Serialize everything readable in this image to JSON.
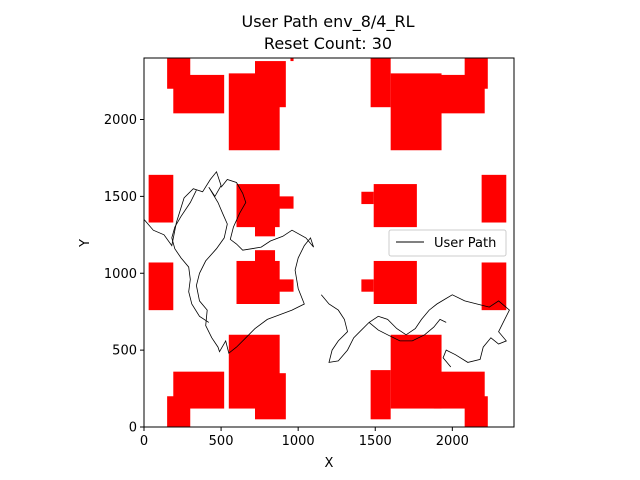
{
  "chart_data": {
    "type": "line",
    "title": "User Path env_8/4_RL",
    "subtitle": "Reset Count: 30",
    "xlabel": "X",
    "ylabel": "Y",
    "xlim": [
      0,
      2400
    ],
    "ylim": [
      0,
      2400
    ],
    "xticks": [
      0,
      500,
      1000,
      1500,
      2000
    ],
    "yticks": [
      0,
      500,
      1000,
      1500,
      2000
    ],
    "obstacle_color": "#ff0000",
    "path_color": "#000000",
    "legend": {
      "label": "User Path",
      "placement": "right"
    },
    "obstacles": [
      {
        "x": 150,
        "y": 2200,
        "w": 150,
        "h": 200
      },
      {
        "x": 190,
        "y": 2040,
        "w": 330,
        "h": 250
      },
      {
        "x": 550,
        "y": 1800,
        "w": 330,
        "h": 500
      },
      {
        "x": 720,
        "y": 2080,
        "w": 200,
        "h": 300
      },
      {
        "x": 950,
        "y": 2380,
        "w": 20,
        "h": 20
      },
      {
        "x": 1470,
        "y": 2080,
        "w": 130,
        "h": 320
      },
      {
        "x": 1600,
        "y": 1800,
        "w": 330,
        "h": 500
      },
      {
        "x": 1880,
        "y": 2040,
        "w": 330,
        "h": 250
      },
      {
        "x": 2080,
        "y": 2200,
        "w": 150,
        "h": 200
      },
      {
        "x": 30,
        "y": 1330,
        "w": 160,
        "h": 310
      },
      {
        "x": 600,
        "y": 1300,
        "w": 280,
        "h": 280
      },
      {
        "x": 820,
        "y": 1420,
        "w": 150,
        "h": 80
      },
      {
        "x": 720,
        "y": 1240,
        "w": 130,
        "h": 90
      },
      {
        "x": 1410,
        "y": 1450,
        "w": 80,
        "h": 80
      },
      {
        "x": 1490,
        "y": 1300,
        "w": 280,
        "h": 280
      },
      {
        "x": 2190,
        "y": 1330,
        "w": 160,
        "h": 310
      },
      {
        "x": 30,
        "y": 760,
        "w": 160,
        "h": 310
      },
      {
        "x": 600,
        "y": 800,
        "w": 280,
        "h": 280
      },
      {
        "x": 820,
        "y": 880,
        "w": 150,
        "h": 80
      },
      {
        "x": 720,
        "y": 1060,
        "w": 130,
        "h": 90
      },
      {
        "x": 1410,
        "y": 880,
        "w": 80,
        "h": 80
      },
      {
        "x": 1490,
        "y": 800,
        "w": 280,
        "h": 280
      },
      {
        "x": 2190,
        "y": 760,
        "w": 160,
        "h": 310
      },
      {
        "x": 150,
        "y": 0,
        "w": 150,
        "h": 200
      },
      {
        "x": 190,
        "y": 120,
        "w": 330,
        "h": 240
      },
      {
        "x": 550,
        "y": 120,
        "w": 330,
        "h": 480
      },
      {
        "x": 720,
        "y": 50,
        "w": 200,
        "h": 300
      },
      {
        "x": 1470,
        "y": 50,
        "w": 130,
        "h": 320
      },
      {
        "x": 1600,
        "y": 120,
        "w": 330,
        "h": 480
      },
      {
        "x": 1880,
        "y": 120,
        "w": 330,
        "h": 240
      },
      {
        "x": 2080,
        "y": 0,
        "w": 150,
        "h": 200
      }
    ],
    "path": [
      [
        0,
        1350
      ],
      [
        60,
        1280
      ],
      [
        130,
        1250
      ],
      [
        180,
        1180
      ],
      [
        210,
        1330
      ],
      [
        260,
        1490
      ],
      [
        320,
        1550
      ],
      [
        380,
        1530
      ],
      [
        430,
        1610
      ],
      [
        470,
        1660
      ],
      [
        500,
        1570
      ],
      [
        460,
        1500
      ],
      [
        420,
        1560
      ],
      [
        480,
        1460
      ],
      [
        510,
        1390
      ],
      [
        540,
        1320
      ],
      [
        520,
        1230
      ],
      [
        470,
        1160
      ],
      [
        400,
        1080
      ],
      [
        360,
        1000
      ],
      [
        340,
        920
      ],
      [
        360,
        820
      ],
      [
        410,
        760
      ],
      [
        400,
        660
      ],
      [
        440,
        580
      ],
      [
        480,
        520
      ],
      [
        490,
        490
      ],
      [
        530,
        560
      ],
      [
        550,
        480
      ],
      [
        600,
        520
      ],
      [
        660,
        580
      ],
      [
        720,
        640
      ],
      [
        800,
        700
      ],
      [
        880,
        730
      ],
      [
        960,
        760
      ],
      [
        1040,
        800
      ],
      [
        1000,
        900
      ],
      [
        980,
        1020
      ],
      [
        1000,
        1100
      ],
      [
        1040,
        1180
      ],
      [
        1080,
        1230
      ],
      [
        1100,
        1170
      ],
      [
        1050,
        1230
      ],
      [
        960,
        1280
      ],
      [
        900,
        1240
      ],
      [
        820,
        1210
      ],
      [
        760,
        1170
      ],
      [
        700,
        1160
      ],
      [
        640,
        1150
      ],
      [
        600,
        1190
      ],
      [
        560,
        1220
      ],
      [
        580,
        1300
      ],
      [
        620,
        1390
      ],
      [
        660,
        1460
      ],
      [
        640,
        1520
      ],
      [
        600,
        1590
      ],
      [
        540,
        1610
      ],
      [
        500,
        1560
      ]
    ],
    "path2": [
      [
        340,
        1540
      ],
      [
        300,
        1460
      ],
      [
        240,
        1370
      ],
      [
        200,
        1300
      ],
      [
        180,
        1230
      ],
      [
        200,
        1160
      ],
      [
        240,
        1100
      ],
      [
        290,
        1040
      ],
      [
        300,
        960
      ],
      [
        290,
        880
      ],
      [
        310,
        800
      ],
      [
        360,
        720
      ],
      [
        420,
        680
      ]
    ],
    "path3": [
      [
        1150,
        860
      ],
      [
        1200,
        800
      ],
      [
        1260,
        760
      ],
      [
        1300,
        700
      ],
      [
        1320,
        620
      ],
      [
        1260,
        560
      ],
      [
        1220,
        500
      ],
      [
        1200,
        420
      ],
      [
        1260,
        430
      ],
      [
        1320,
        500
      ],
      [
        1360,
        580
      ],
      [
        1400,
        620
      ],
      [
        1460,
        680
      ],
      [
        1520,
        720
      ],
      [
        1580,
        700
      ],
      [
        1640,
        640
      ],
      [
        1700,
        600
      ],
      [
        1760,
        640
      ],
      [
        1800,
        700
      ],
      [
        1850,
        760
      ],
      [
        1900,
        800
      ],
      [
        1950,
        830
      ],
      [
        2000,
        860
      ],
      [
        2080,
        820
      ],
      [
        2160,
        800
      ],
      [
        2240,
        780
      ],
      [
        2300,
        820
      ],
      [
        2370,
        760
      ],
      [
        2330,
        680
      ],
      [
        2300,
        620
      ],
      [
        2350,
        560
      ],
      [
        2300,
        540
      ],
      [
        2250,
        580
      ],
      [
        2200,
        520
      ],
      [
        2180,
        440
      ],
      [
        2100,
        420
      ],
      [
        2020,
        470
      ],
      [
        1960,
        500
      ],
      [
        1940,
        450
      ],
      [
        1990,
        390
      ]
    ],
    "path4": [
      [
        1460,
        680
      ],
      [
        1520,
        630
      ],
      [
        1580,
        600
      ],
      [
        1660,
        560
      ],
      [
        1740,
        560
      ],
      [
        1820,
        600
      ],
      [
        1880,
        650
      ],
      [
        1920,
        700
      ],
      [
        1960,
        680
      ]
    ]
  }
}
